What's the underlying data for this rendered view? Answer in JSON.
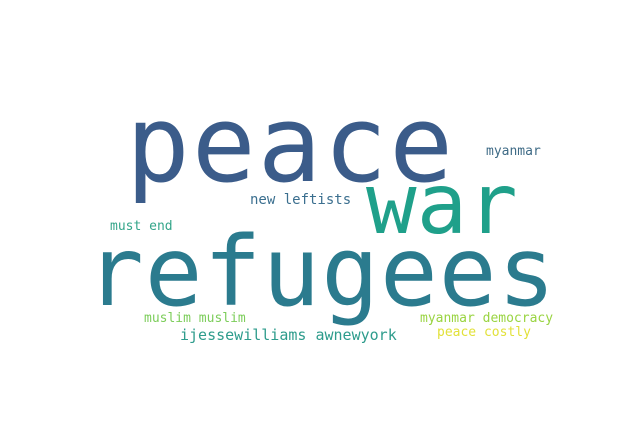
{
  "words": [
    {
      "text": "peace",
      "color": "#3b5c8a"
    },
    {
      "text": "war",
      "color": "#1fa08a"
    },
    {
      "text": "refugees",
      "color": "#2b7b8e"
    },
    {
      "text": "myanmar",
      "color": "#3f6b86"
    },
    {
      "text": "new leftists",
      "color": "#3b6f8f"
    },
    {
      "text": "must end",
      "color": "#34a58a"
    },
    {
      "text": "muslim muslim",
      "color": "#7ccd5a"
    },
    {
      "text": "myanmar democracy",
      "color": "#9ad442"
    },
    {
      "text": "ijessewilliams awnewyork",
      "color": "#2e9c8c"
    },
    {
      "text": "peace costly",
      "color": "#e2e13a"
    }
  ]
}
